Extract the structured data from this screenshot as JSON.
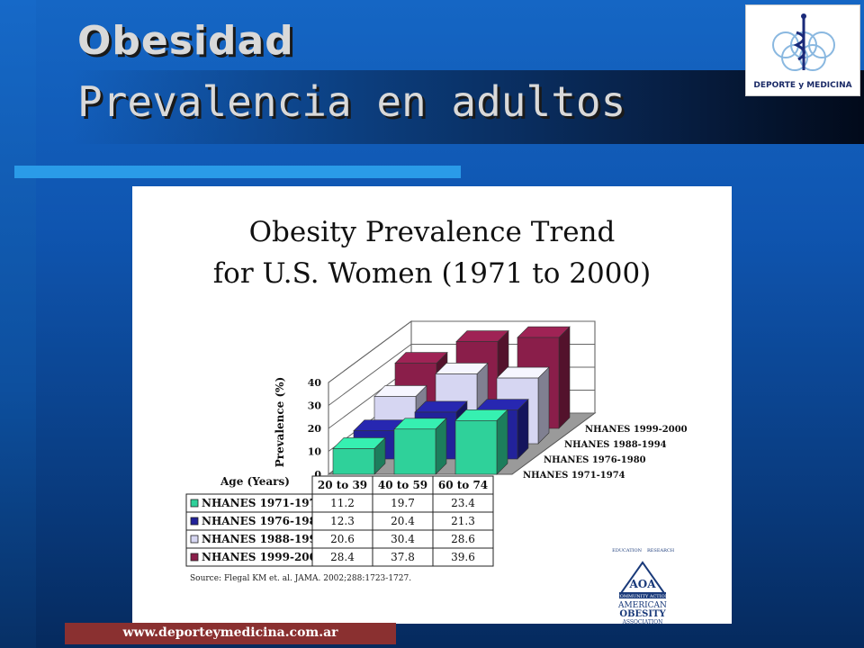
{
  "slide": {
    "title": "Obesidad",
    "subtitle": "Prevalencia en adultos",
    "footer_url": "www.deporteymedicina.com.ar"
  },
  "logo": {
    "text": "DEPORTE y MEDICINA"
  },
  "aoa_logo": {
    "lines": [
      "AOA",
      "AMERICAN",
      "OBESITY",
      "ASSOCIATION"
    ],
    "arc_left": "EDUCATION",
    "arc_right": "RESEARCH",
    "band": "COMMUNITY ACTION"
  },
  "colors": {
    "s1971": "#2fd19a",
    "s1976": "#22229a",
    "s1988": "#d6d6f2",
    "s1999": "#8a1e4a"
  },
  "chart_data": {
    "type": "bar",
    "title_line1": "Obesity Prevalence Trend",
    "title_line2": "for U.S. Women (1971 to 2000)",
    "ylabel": "Prevalence (%)",
    "xlabel": "Age (Years)",
    "ylim": [
      0,
      40
    ],
    "yticks": [
      "0",
      "10",
      "20",
      "30",
      "40"
    ],
    "categories": [
      "20 to 39",
      "40 to 59",
      "60 to 74"
    ],
    "series": [
      {
        "name": "NHANES 1971-1974",
        "values": [
          11.2,
          19.7,
          23.4
        ],
        "labels": [
          "11.2",
          "19.7",
          "23.4"
        ],
        "color": "#2fd19a"
      },
      {
        "name": "NHANES 1976-1980",
        "values": [
          12.3,
          20.4,
          21.3
        ],
        "labels": [
          "12.3",
          "20.4",
          "21.3"
        ],
        "color": "#22229a"
      },
      {
        "name": "NHANES 1988-1994",
        "values": [
          20.6,
          30.4,
          28.6
        ],
        "labels": [
          "20.6",
          "30.4",
          "28.6"
        ],
        "color": "#d6d6f2"
      },
      {
        "name": "NHANES 1999-2000",
        "values": [
          28.4,
          37.8,
          39.6
        ],
        "labels": [
          "28.4",
          "37.8",
          "39.6"
        ],
        "color": "#8a1e4a"
      }
    ],
    "source": "Source: Flegal KM et. al. JAMA. 2002;288:1723-1727."
  }
}
